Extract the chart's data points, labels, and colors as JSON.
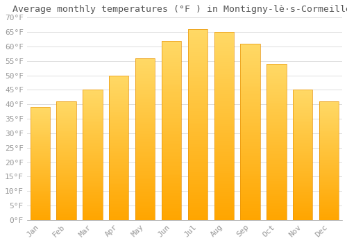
{
  "title": "Average monthly temperatures (°F ) in Montigny-lè·s-Cormeilles",
  "months": [
    "Jan",
    "Feb",
    "Mar",
    "Apr",
    "May",
    "Jun",
    "Jul",
    "Aug",
    "Sep",
    "Oct",
    "Nov",
    "Dec"
  ],
  "values": [
    39,
    41,
    45,
    50,
    56,
    62,
    66,
    65,
    61,
    54,
    45,
    41
  ],
  "bar_color_bottom": "#FFA500",
  "bar_color_top": "#FFD966",
  "background_color": "#FFFFFF",
  "grid_color": "#DDDDDD",
  "ylim": [
    0,
    70
  ],
  "ytick_step": 5,
  "title_fontsize": 9.5,
  "tick_fontsize": 8,
  "tick_color": "#999999",
  "title_color": "#555555"
}
